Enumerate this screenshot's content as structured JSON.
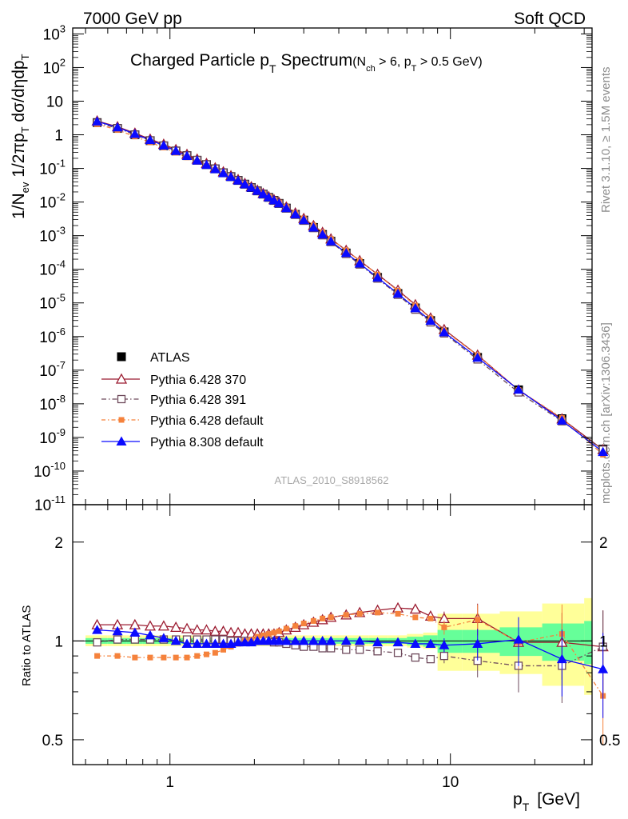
{
  "header": {
    "left": "7000 GeV pp",
    "right": "Soft QCD"
  },
  "side_labels": {
    "rivet": "Rivet 3.1.10, ≥ 1.5M events",
    "mcplots": "mcplots.cern.ch [arXiv:1306.3436]"
  },
  "watermark": "ATLAS_2010_S8918562",
  "colors": {
    "atlas": "#000000",
    "py370": "#9b1b30",
    "py391": "#6e4a5c",
    "py6def": "#f5823c",
    "py8": "#0a0aff",
    "band_yellow": "#ffff99",
    "band_green": "#66ff99"
  },
  "chart_data": [
    {
      "type": "line",
      "title": "Charged Particle pT Spectrum",
      "title_parts": {
        "main": "Charged Particle p",
        "main_sub": "T",
        "main_rest": " Spectrum",
        "cond_a": "(N",
        "cond_a_sub": "ch",
        "cond_b": " > 6, p",
        "cond_b_sub": "T",
        "cond_c": " > 0.5 GeV)"
      },
      "ylabel": "1/Nev 1/2πpT dσ/dηdpT",
      "ylabel_parts": {
        "a": "1/N",
        "a_sub": "ev",
        "b": " 1/2πp",
        "b_sub": "T",
        "c": " dσ/dηdp",
        "c_sub": "T"
      },
      "xscale": "log",
      "yscale": "log",
      "xlim": [
        0.45,
        32
      ],
      "ylim": [
        1e-11,
        1500
      ],
      "yticks": [
        "10-11",
        "10-10",
        "10-9",
        "10-8",
        "10-7",
        "10-6",
        "10-5",
        "10-4",
        "10-3",
        "10-2",
        "10-1",
        "1",
        "10",
        "10 2",
        "10 3"
      ],
      "ytick_labels": [
        {
          "base": "10",
          "exp": "-11"
        },
        {
          "base": "10",
          "exp": "-10"
        },
        {
          "base": "10",
          "exp": "-9"
        },
        {
          "base": "10",
          "exp": "-8"
        },
        {
          "base": "10",
          "exp": "-7"
        },
        {
          "base": "10",
          "exp": "-6"
        },
        {
          "base": "10",
          "exp": "-5"
        },
        {
          "base": "10",
          "exp": "-4"
        },
        {
          "base": "10",
          "exp": "-3"
        },
        {
          "base": "10",
          "exp": "-2"
        },
        {
          "base": "10",
          "exp": "-1"
        },
        {
          "base": "1",
          "exp": ""
        },
        {
          "base": "10",
          "exp": ""
        },
        {
          "base": "10",
          "exp": "2"
        },
        {
          "base": "10",
          "exp": "3"
        }
      ],
      "grid": false,
      "legend_position": "bottom-left",
      "x": [
        0.55,
        0.65,
        0.75,
        0.85,
        0.95,
        1.05,
        1.15,
        1.25,
        1.35,
        1.45,
        1.55,
        1.65,
        1.75,
        1.85,
        1.95,
        2.05,
        2.15,
        2.25,
        2.35,
        2.45,
        2.6,
        2.8,
        3.0,
        3.25,
        3.5,
        3.75,
        4.25,
        4.75,
        5.5,
        6.5,
        7.5,
        8.5,
        9.5,
        12.5,
        17.5,
        25.0,
        35.0
      ],
      "series": [
        {
          "name": "ATLAS",
          "key": "atlas",
          "marker": "square-filled",
          "values": [
            2.3,
            1.55,
            1.0,
            0.67,
            0.47,
            0.33,
            0.24,
            0.175,
            0.13,
            0.097,
            0.074,
            0.057,
            0.044,
            0.034,
            0.027,
            0.0215,
            0.0172,
            0.0138,
            0.0112,
            0.0091,
            0.0066,
            0.0043,
            0.0029,
            0.00175,
            0.00108,
            0.00068,
            0.000305,
            0.000148,
            5.7e-05,
            1.9e-05,
            7.1e-06,
            3e-06,
            1.38e-06,
            2.4e-07,
            2.6e-08,
            3.6e-09,
            4.5e-10
          ]
        },
        {
          "name": "Pythia 6.428 370",
          "key": "py370",
          "marker": "triangle-open",
          "dash": "",
          "ratio": [
            1.12,
            1.12,
            1.12,
            1.11,
            1.11,
            1.1,
            1.09,
            1.08,
            1.08,
            1.07,
            1.07,
            1.06,
            1.06,
            1.05,
            1.05,
            1.05,
            1.05,
            1.05,
            1.05,
            1.06,
            1.08,
            1.1,
            1.12,
            1.14,
            1.16,
            1.18,
            1.2,
            1.22,
            1.24,
            1.26,
            1.25,
            1.19,
            1.17,
            1.17,
            0.99,
            0.99,
            0.96
          ]
        },
        {
          "name": "Pythia 6.428 391",
          "key": "py391",
          "marker": "square-open",
          "dash": "6,3,1.5,3",
          "ratio": [
            0.99,
            1.01,
            1.01,
            1.01,
            1.01,
            1.01,
            1.01,
            1.01,
            1.01,
            1.01,
            1.01,
            1.0,
            1.0,
            1.0,
            1.0,
            1.0,
            1.0,
            1.0,
            0.99,
            0.99,
            0.98,
            0.97,
            0.96,
            0.96,
            0.95,
            0.95,
            0.94,
            0.94,
            0.93,
            0.92,
            0.89,
            0.88,
            0.9,
            0.87,
            0.84,
            0.84,
            0.96
          ]
        },
        {
          "name": "Pythia 6.428 default",
          "key": "py6def",
          "marker": "square-small-filled",
          "dash": "5,3,1.5,3",
          "ratio": [
            0.9,
            0.9,
            0.89,
            0.89,
            0.89,
            0.89,
            0.89,
            0.9,
            0.91,
            0.92,
            0.94,
            0.96,
            0.98,
            1.0,
            1.01,
            1.03,
            1.04,
            1.05,
            1.06,
            1.07,
            1.09,
            1.11,
            1.13,
            1.15,
            1.17,
            1.18,
            1.2,
            1.21,
            1.22,
            1.21,
            1.18,
            1.17,
            1.1,
            1.16,
            0.99,
            1.05,
            0.68
          ]
        },
        {
          "name": "Pythia 8.308 default",
          "key": "py8",
          "marker": "triangle-filled",
          "dash": "",
          "ratio": [
            1.08,
            1.07,
            1.06,
            1.04,
            1.02,
            1.0,
            0.98,
            0.98,
            0.98,
            0.98,
            0.98,
            0.98,
            0.99,
            0.99,
            0.99,
            1.0,
            1.0,
            1.0,
            1.0,
            1.0,
            1.0,
            1.0,
            1.0,
            1.0,
            1.0,
            1.0,
            1.0,
            1.0,
            0.99,
            0.99,
            0.98,
            0.98,
            0.97,
            0.98,
            1.01,
            0.88,
            0.82
          ]
        }
      ]
    },
    {
      "type": "line",
      "ylabel": "Ratio to ATLAS",
      "xlabel": "pT [GeV]",
      "xlabel_parts": {
        "a": "p",
        "a_sub": "T",
        "b": "[GeV]"
      },
      "xscale": "log",
      "yscale": "log",
      "xlim": [
        0.45,
        32
      ],
      "ylim": [
        0.42,
        2.6
      ],
      "xtick_labels": [
        "1",
        "10"
      ],
      "ytick_labels": [
        "0.5",
        "1",
        "2"
      ],
      "reference_line": 1.0
    }
  ]
}
